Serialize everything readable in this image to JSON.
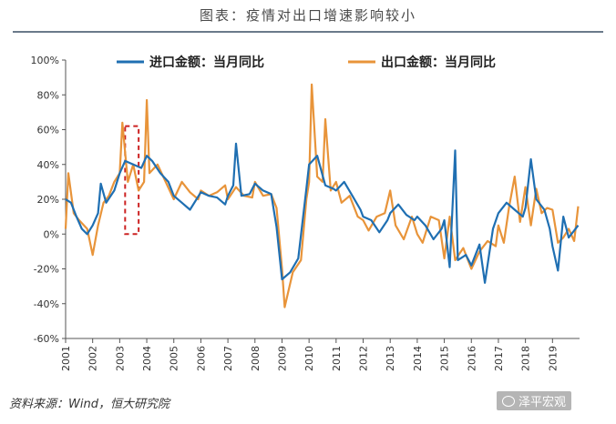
{
  "header": {
    "title": "图表：疫情对出口增速影响较小"
  },
  "footer": {
    "source": "资料来源：Wind，恒大研究院",
    "watermark": "泽平宏观"
  },
  "colors": {
    "import": "#1f6fb2",
    "export": "#e8943a",
    "highlight": "#cc2222"
  },
  "chart_data": {
    "type": "line",
    "title": "图表：疫情对出口增速影响较小",
    "ylim": [
      -60,
      100
    ],
    "xlim": [
      2001,
      2020
    ],
    "yticks": [
      -60,
      -40,
      -20,
      0,
      20,
      40,
      60,
      80,
      100
    ],
    "ytick_labels": [
      "-60%",
      "-40%",
      "-20%",
      "0%",
      "20%",
      "40%",
      "60%",
      "80%",
      "100%"
    ],
    "xticks": [
      2001,
      2002,
      2003,
      2004,
      2005,
      2006,
      2007,
      2008,
      2009,
      2010,
      2011,
      2012,
      2013,
      2014,
      2015,
      2016,
      2017,
      2018,
      2019
    ],
    "legend": "top",
    "highlight_region": {
      "x_start": 2003.2,
      "x_end": 2003.7,
      "y_min": 0,
      "y_max": 62
    },
    "series": [
      {
        "name": "进口金额：当月同比",
        "color": "#1f6fb2",
        "points": [
          [
            2001.0,
            20
          ],
          [
            2001.2,
            18
          ],
          [
            2001.4,
            10
          ],
          [
            2001.6,
            3
          ],
          [
            2001.8,
            0
          ],
          [
            2002.0,
            5
          ],
          [
            2002.2,
            12
          ],
          [
            2002.3,
            29
          ],
          [
            2002.5,
            18
          ],
          [
            2002.8,
            25
          ],
          [
            2003.0,
            35
          ],
          [
            2003.2,
            42
          ],
          [
            2003.5,
            40
          ],
          [
            2003.8,
            38
          ],
          [
            2004.0,
            45
          ],
          [
            2004.2,
            42
          ],
          [
            2004.5,
            35
          ],
          [
            2004.8,
            30
          ],
          [
            2005.0,
            22
          ],
          [
            2005.3,
            18
          ],
          [
            2005.6,
            14
          ],
          [
            2006.0,
            24
          ],
          [
            2006.3,
            22
          ],
          [
            2006.6,
            21
          ],
          [
            2006.9,
            17
          ],
          [
            2007.0,
            22
          ],
          [
            2007.2,
            28
          ],
          [
            2007.3,
            52
          ],
          [
            2007.5,
            22
          ],
          [
            2007.8,
            23
          ],
          [
            2008.0,
            29
          ],
          [
            2008.3,
            25
          ],
          [
            2008.6,
            23
          ],
          [
            2008.8,
            4
          ],
          [
            2009.0,
            -26
          ],
          [
            2009.3,
            -22
          ],
          [
            2009.6,
            -14
          ],
          [
            2009.9,
            26
          ],
          [
            2010.0,
            40
          ],
          [
            2010.3,
            45
          ],
          [
            2010.6,
            28
          ],
          [
            2010.9,
            26
          ],
          [
            2011.0,
            25
          ],
          [
            2011.3,
            30
          ],
          [
            2011.6,
            22
          ],
          [
            2011.9,
            14
          ],
          [
            2012.0,
            10
          ],
          [
            2012.3,
            8
          ],
          [
            2012.6,
            1
          ],
          [
            2012.9,
            8
          ],
          [
            2013.0,
            12
          ],
          [
            2013.3,
            17
          ],
          [
            2013.6,
            11
          ],
          [
            2013.9,
            8
          ],
          [
            2014.0,
            10
          ],
          [
            2014.3,
            5
          ],
          [
            2014.6,
            -3
          ],
          [
            2014.9,
            3
          ],
          [
            2015.0,
            8
          ],
          [
            2015.2,
            -19
          ],
          [
            2015.4,
            48
          ],
          [
            2015.5,
            -15
          ],
          [
            2015.8,
            -12
          ],
          [
            2016.0,
            -18
          ],
          [
            2016.3,
            -6
          ],
          [
            2016.5,
            -28
          ],
          [
            2016.8,
            3
          ],
          [
            2017.0,
            12
          ],
          [
            2017.3,
            18
          ],
          [
            2017.6,
            14
          ],
          [
            2017.9,
            10
          ],
          [
            2018.0,
            15
          ],
          [
            2018.2,
            43
          ],
          [
            2018.4,
            20
          ],
          [
            2018.7,
            14
          ],
          [
            2018.9,
            3
          ],
          [
            2019.0,
            -7
          ],
          [
            2019.2,
            -21
          ],
          [
            2019.4,
            10
          ],
          [
            2019.6,
            -2
          ],
          [
            2019.8,
            2
          ],
          [
            2019.95,
            5
          ]
        ]
      },
      {
        "name": "出口金额：当月同比",
        "color": "#e8943a",
        "points": [
          [
            2001.0,
            3
          ],
          [
            2001.1,
            35
          ],
          [
            2001.3,
            12
          ],
          [
            2001.5,
            8
          ],
          [
            2001.8,
            3
          ],
          [
            2002.0,
            -12
          ],
          [
            2002.2,
            5
          ],
          [
            2002.4,
            18
          ],
          [
            2002.6,
            22
          ],
          [
            2002.8,
            30
          ],
          [
            2003.0,
            35
          ],
          [
            2003.1,
            64
          ],
          [
            2003.3,
            30
          ],
          [
            2003.5,
            40
          ],
          [
            2003.7,
            25
          ],
          [
            2003.9,
            30
          ],
          [
            2004.0,
            77
          ],
          [
            2004.1,
            35
          ],
          [
            2004.4,
            40
          ],
          [
            2004.7,
            30
          ],
          [
            2005.0,
            20
          ],
          [
            2005.3,
            30
          ],
          [
            2005.6,
            24
          ],
          [
            2005.9,
            20
          ],
          [
            2006.0,
            25
          ],
          [
            2006.3,
            22
          ],
          [
            2006.6,
            24
          ],
          [
            2006.9,
            28
          ],
          [
            2007.0,
            20
          ],
          [
            2007.3,
            27
          ],
          [
            2007.6,
            22
          ],
          [
            2007.9,
            21
          ],
          [
            2008.0,
            30
          ],
          [
            2008.3,
            22
          ],
          [
            2008.6,
            23
          ],
          [
            2008.8,
            15
          ],
          [
            2009.0,
            -20
          ],
          [
            2009.1,
            -42
          ],
          [
            2009.4,
            -22
          ],
          [
            2009.7,
            -15
          ],
          [
            2009.9,
            20
          ],
          [
            2010.0,
            30
          ],
          [
            2010.1,
            86
          ],
          [
            2010.3,
            33
          ],
          [
            2010.5,
            30
          ],
          [
            2010.6,
            66
          ],
          [
            2010.8,
            25
          ],
          [
            2011.0,
            30
          ],
          [
            2011.2,
            18
          ],
          [
            2011.5,
            22
          ],
          [
            2011.8,
            10
          ],
          [
            2012.0,
            8
          ],
          [
            2012.2,
            2
          ],
          [
            2012.5,
            10
          ],
          [
            2012.8,
            12
          ],
          [
            2013.0,
            25
          ],
          [
            2013.2,
            5
          ],
          [
            2013.5,
            -3
          ],
          [
            2013.8,
            10
          ],
          [
            2014.0,
            0
          ],
          [
            2014.2,
            -5
          ],
          [
            2014.5,
            10
          ],
          [
            2014.8,
            8
          ],
          [
            2015.0,
            -14
          ],
          [
            2015.2,
            10
          ],
          [
            2015.4,
            -15
          ],
          [
            2015.7,
            -8
          ],
          [
            2016.0,
            -20
          ],
          [
            2016.3,
            -10
          ],
          [
            2016.6,
            -4
          ],
          [
            2016.9,
            -7
          ],
          [
            2017.0,
            5
          ],
          [
            2017.2,
            -5
          ],
          [
            2017.4,
            16
          ],
          [
            2017.6,
            33
          ],
          [
            2017.8,
            7
          ],
          [
            2018.0,
            27
          ],
          [
            2018.2,
            5
          ],
          [
            2018.4,
            26
          ],
          [
            2018.6,
            12
          ],
          [
            2018.8,
            15
          ],
          [
            2019.0,
            14
          ],
          [
            2019.2,
            -5
          ],
          [
            2019.4,
            -2
          ],
          [
            2019.6,
            3
          ],
          [
            2019.8,
            -4
          ],
          [
            2019.95,
            16
          ]
        ]
      }
    ]
  }
}
